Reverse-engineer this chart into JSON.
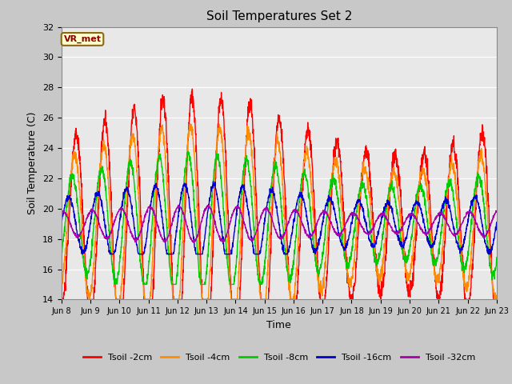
{
  "title": "Soil Temperatures Set 2",
  "xlabel": "Time",
  "ylabel": "Soil Temperature (C)",
  "ylim": [
    14,
    32
  ],
  "yticks": [
    14,
    16,
    18,
    20,
    22,
    24,
    26,
    28,
    30,
    32
  ],
  "annotation_text": "VR_met",
  "annotation_color": "#8B0000",
  "annotation_bg": "#FFFFCC",
  "annotation_border": "#8B6914",
  "colors": {
    "Tsoil -2cm": "#FF0000",
    "Tsoil -4cm": "#FF8C00",
    "Tsoil -8cm": "#00CC00",
    "Tsoil -16cm": "#0000CC",
    "Tsoil -32cm": "#AA00AA"
  },
  "fig_bg": "#C8C8C8",
  "axes_bg": "#E8E8E8",
  "grid_color": "#FFFFFF",
  "num_days": 15,
  "points_per_day": 144,
  "start_day": 8
}
